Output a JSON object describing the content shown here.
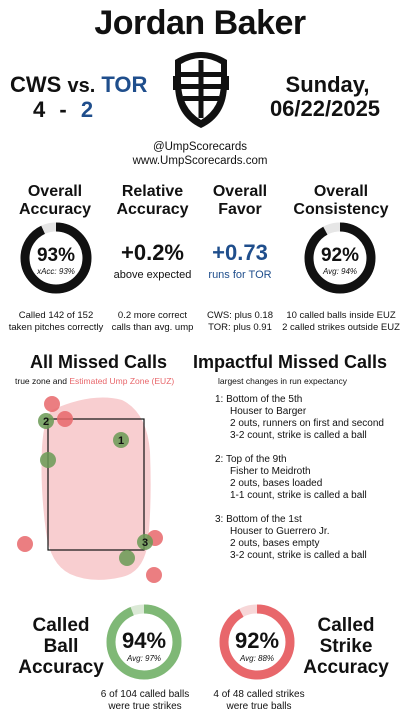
{
  "header": {
    "umpire_name": "Jordan Baker",
    "away_team": "CWS",
    "vs_label": "vs.",
    "home_team": "TOR",
    "away_score": "4",
    "dash": "-",
    "home_score": "2",
    "date_day": "Sunday,",
    "date_value": "06/22/2025",
    "mask_icon": "umpire-mask-icon",
    "handle": "@UmpScorecards",
    "website": "www.UmpScorecards.com"
  },
  "stats": {
    "overall_accuracy": {
      "title_line1": "Overall",
      "title_line2": "Accuracy",
      "value": "93%",
      "sub": "xAcc: 93%",
      "note_line1": "Called 142 of 152",
      "note_line2": "taken pitches correctly",
      "ring_fraction": 0.93
    },
    "relative_accuracy": {
      "title_line1": "Relative",
      "title_line2": "Accuracy",
      "value": "+0.2%",
      "sub": "above expected",
      "note_line1": "0.2 more correct",
      "note_line2": "calls than avg. ump"
    },
    "overall_favor": {
      "title_line1": "Overall",
      "title_line2": "Favor",
      "value": "+0.73",
      "sub": "runs for TOR",
      "note_line1": "CWS: plus 0.18",
      "note_line2": "TOR: plus 0.91"
    },
    "overall_consistency": {
      "title_line1": "Overall",
      "title_line2": "Consistency",
      "value": "92%",
      "sub": "Avg: 94%",
      "note_line1": "10 called balls inside EUZ",
      "note_line2": "2 called strikes outside EUZ",
      "ring_fraction": 0.92
    }
  },
  "missed_calls": {
    "title": "All Missed Calls",
    "legend_prefix": "true zone and ",
    "legend_euz": "Estimated Ump Zone (EUZ)",
    "labels": [
      "1",
      "2",
      "3"
    ],
    "colors": {
      "missed_strike": "#e8676b",
      "missed_ball": "#6a9a55",
      "euz_fill": "#f7c9cb"
    }
  },
  "impactful": {
    "title": "Impactful Missed Calls",
    "subtitle": "largest changes in run expectancy",
    "items": [
      {
        "num": "1:",
        "line1": "Bottom of the 5th",
        "line2": "Houser to Barger",
        "line3": "2 outs, runners on first and second",
        "line4": "3-2 count, strike is called a ball"
      },
      {
        "num": "2:",
        "line1": "Top of the 9th",
        "line2": "Fisher to Meidroth",
        "line3": "2 outs, bases loaded",
        "line4": "1-1 count, strike is called a ball"
      },
      {
        "num": "3:",
        "line1": "Bottom of the 1st",
        "line2": "Houser to Guerrero Jr.",
        "line3": "2 outs, bases empty",
        "line4": "3-2 count, strike is called a ball"
      }
    ]
  },
  "bottom": {
    "called_ball": {
      "label_line1": "Called",
      "label_line2": "Ball",
      "label_line3": "Accuracy",
      "value": "94%",
      "avg": "Avg: 97%",
      "note_line1": "6 of 104 called balls",
      "note_line2": "were true strikes",
      "ring_fraction": 0.94,
      "color": "#7fb876"
    },
    "called_strike": {
      "label_line1": "Called",
      "label_line2": "Strike",
      "label_line3": "Accuracy",
      "value": "92%",
      "avg": "Avg: 88%",
      "note_line1": "4 of 48 called strikes",
      "note_line2": "were true balls",
      "ring_fraction": 0.92,
      "color": "#e8676b"
    }
  }
}
